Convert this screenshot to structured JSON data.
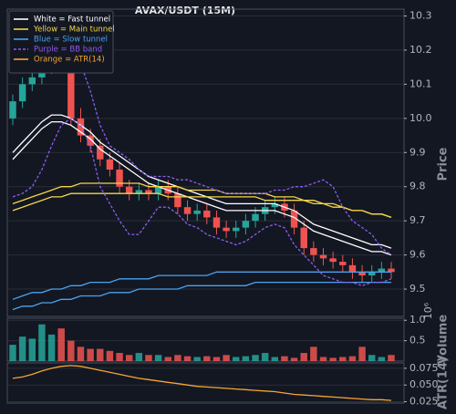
{
  "chart_data": [
    {
      "type": "candlestick",
      "title": "AVAX/USDT (15M)",
      "y_label": "Price",
      "ylim": [
        9.42,
        10.32
      ],
      "yticks": [
        9.5,
        9.6,
        9.7,
        9.8,
        9.9,
        {
          "value": 10,
          "label": "10.0"
        },
        10.1,
        10.2,
        10.3
      ],
      "grid": true,
      "legend": "upper left",
      "up_color": "#26a69a",
      "down_color": "#ef5350",
      "open": [
        10.0,
        10.05,
        10.1,
        10.12,
        10.15,
        10.18,
        10.16,
        10.0,
        9.95,
        9.92,
        9.88,
        9.85,
        9.8,
        9.78,
        9.79,
        9.78,
        9.8,
        9.78,
        9.74,
        9.72,
        9.73,
        9.71,
        9.68,
        9.67,
        9.68,
        9.7,
        9.72,
        9.74,
        9.75,
        9.73,
        9.68,
        9.62,
        9.6,
        9.59,
        9.58,
        9.57,
        9.55,
        9.54,
        9.55,
        9.56
      ],
      "high": [
        10.07,
        10.12,
        10.14,
        10.17,
        10.21,
        10.2,
        10.18,
        10.03,
        9.97,
        9.94,
        9.9,
        9.87,
        9.82,
        9.81,
        9.81,
        9.82,
        9.82,
        9.8,
        9.76,
        9.75,
        9.75,
        9.73,
        9.7,
        9.7,
        9.72,
        9.74,
        9.76,
        9.77,
        9.77,
        9.75,
        9.7,
        9.64,
        9.62,
        9.61,
        9.6,
        9.59,
        9.57,
        9.57,
        9.58,
        9.58
      ],
      "low": [
        9.98,
        10.03,
        10.08,
        10.1,
        10.13,
        10.14,
        9.98,
        9.93,
        9.9,
        9.86,
        9.83,
        9.78,
        9.76,
        9.76,
        9.76,
        9.76,
        9.76,
        9.72,
        9.7,
        9.7,
        9.69,
        9.66,
        9.65,
        9.65,
        9.66,
        9.68,
        9.7,
        9.72,
        9.71,
        9.66,
        9.6,
        9.58,
        9.57,
        9.56,
        9.55,
        9.53,
        9.52,
        9.52,
        9.53,
        9.53
      ],
      "close": [
        10.05,
        10.1,
        10.12,
        10.15,
        10.18,
        10.16,
        10.0,
        9.95,
        9.92,
        9.88,
        9.85,
        9.8,
        9.78,
        9.79,
        9.78,
        9.8,
        9.78,
        9.74,
        9.72,
        9.73,
        9.71,
        9.68,
        9.67,
        9.68,
        9.7,
        9.72,
        9.74,
        9.75,
        9.73,
        9.68,
        9.62,
        9.6,
        9.59,
        9.58,
        9.57,
        9.55,
        9.54,
        9.55,
        9.56,
        9.55
      ],
      "series": [
        {
          "name": "White = Fast tunnel",
          "color": "#ffffff",
          "upper": [
            9.9,
            9.93,
            9.96,
            9.99,
            10.01,
            10.01,
            10.0,
            9.98,
            9.96,
            9.93,
            9.91,
            9.89,
            9.87,
            9.85,
            9.83,
            9.82,
            9.81,
            9.8,
            9.79,
            9.78,
            9.77,
            9.76,
            9.75,
            9.75,
            9.75,
            9.75,
            9.75,
            9.75,
            9.74,
            9.73,
            9.71,
            9.69,
            9.68,
            9.67,
            9.66,
            9.65,
            9.64,
            9.63,
            9.63,
            9.62
          ],
          "lower": [
            9.88,
            9.91,
            9.94,
            9.97,
            9.99,
            9.99,
            9.98,
            9.96,
            9.94,
            9.91,
            9.89,
            9.87,
            9.85,
            9.83,
            9.81,
            9.8,
            9.79,
            9.78,
            9.77,
            9.76,
            9.75,
            9.74,
            9.73,
            9.73,
            9.73,
            9.73,
            9.73,
            9.73,
            9.72,
            9.71,
            9.69,
            9.67,
            9.66,
            9.65,
            9.64,
            9.63,
            9.62,
            9.61,
            9.61,
            9.6
          ]
        },
        {
          "name": "Yellow = Main tunnel",
          "color": "#f5d547",
          "upper": [
            9.75,
            9.76,
            9.77,
            9.78,
            9.79,
            9.8,
            9.8,
            9.81,
            9.81,
            9.81,
            9.81,
            9.81,
            9.81,
            9.81,
            9.8,
            9.8,
            9.8,
            9.8,
            9.79,
            9.79,
            9.79,
            9.79,
            9.78,
            9.78,
            9.78,
            9.78,
            9.78,
            9.77,
            9.77,
            9.77,
            9.76,
            9.76,
            9.75,
            9.75,
            9.74,
            9.73,
            9.73,
            9.72,
            9.72,
            9.71
          ],
          "lower": [
            9.73,
            9.74,
            9.75,
            9.76,
            9.77,
            9.77,
            9.78,
            9.78,
            9.78,
            9.78,
            9.78,
            9.78,
            9.78,
            9.78,
            9.78,
            9.78,
            9.77,
            9.77,
            9.77,
            9.77,
            9.77,
            9.77,
            9.77,
            9.77,
            9.77,
            9.77,
            9.76,
            9.76,
            9.76,
            9.76,
            9.76,
            9.75,
            9.75,
            9.74,
            9.74,
            9.73,
            9.73,
            9.72,
            9.72,
            9.71
          ]
        },
        {
          "name": "Blue = Slow tunnel",
          "color": "#4aa3f0",
          "upper": [
            9.47,
            9.48,
            9.49,
            9.49,
            9.5,
            9.5,
            9.51,
            9.51,
            9.52,
            9.52,
            9.52,
            9.53,
            9.53,
            9.53,
            9.53,
            9.54,
            9.54,
            9.54,
            9.54,
            9.54,
            9.54,
            9.55,
            9.55,
            9.55,
            9.55,
            9.55,
            9.55,
            9.55,
            9.55,
            9.55,
            9.55,
            9.55,
            9.55,
            9.55,
            9.55,
            9.55,
            9.55,
            9.55,
            9.55,
            9.55
          ],
          "lower": [
            9.44,
            9.45,
            9.45,
            9.46,
            9.46,
            9.47,
            9.47,
            9.48,
            9.48,
            9.48,
            9.49,
            9.49,
            9.49,
            9.5,
            9.5,
            9.5,
            9.5,
            9.5,
            9.51,
            9.51,
            9.51,
            9.51,
            9.51,
            9.51,
            9.51,
            9.52,
            9.52,
            9.52,
            9.52,
            9.52,
            9.52,
            9.52,
            9.52,
            9.52,
            9.52,
            9.52,
            9.52,
            9.52,
            9.52,
            9.52
          ]
        },
        {
          "name": "Purple = BB band",
          "color": "#8c5cf0",
          "dashed": true,
          "upper": [
            10.15,
            10.22,
            10.26,
            10.28,
            10.27,
            10.25,
            10.22,
            10.16,
            10.08,
            9.98,
            9.92,
            9.9,
            9.88,
            9.85,
            9.83,
            9.83,
            9.83,
            9.82,
            9.82,
            9.81,
            9.8,
            9.79,
            9.78,
            9.78,
            9.78,
            9.78,
            9.78,
            9.79,
            9.79,
            9.8,
            9.8,
            9.81,
            9.82,
            9.8,
            9.74,
            9.7,
            9.68,
            9.66,
            9.62,
            9.6
          ],
          "lower": [
            9.77,
            9.78,
            9.8,
            9.85,
            9.92,
            9.98,
            10.0,
            9.98,
            9.92,
            9.8,
            9.75,
            9.7,
            9.66,
            9.66,
            9.7,
            9.74,
            9.74,
            9.72,
            9.69,
            9.68,
            9.66,
            9.65,
            9.64,
            9.63,
            9.64,
            9.66,
            9.68,
            9.69,
            9.68,
            9.63,
            9.6,
            9.57,
            9.54,
            9.53,
            9.52,
            9.52,
            9.51,
            9.52,
            9.52,
            9.53
          ]
        }
      ]
    },
    {
      "type": "bar",
      "y_label": "Volume",
      "offset_label": "10⁶",
      "ylim": [
        0,
        1.05
      ],
      "yticks": [
        0.5,
        {
          "value": 1,
          "label": "1.0"
        }
      ],
      "grid": true,
      "values": [
        0.4,
        0.6,
        0.55,
        0.9,
        0.65,
        0.8,
        0.5,
        0.35,
        0.3,
        0.3,
        0.25,
        0.2,
        0.15,
        0.2,
        0.15,
        0.15,
        0.1,
        0.15,
        0.12,
        0.1,
        0.12,
        0.1,
        0.15,
        0.1,
        0.12,
        0.15,
        0.2,
        0.1,
        0.12,
        0.08,
        0.2,
        0.35,
        0.1,
        0.08,
        0.1,
        0.12,
        0.35,
        0.15,
        0.1,
        0.15
      ]
    },
    {
      "type": "line",
      "y_label": "ATR(14)",
      "ylim": [
        0.023,
        0.083
      ],
      "yticks": [
        0.025,
        {
          "value": 0.05,
          "label": "0.050"
        },
        {
          "value": 0.075,
          "label": "0.075"
        }
      ],
      "grid": true,
      "series": [
        {
          "name": "Orange = ATR(14)",
          "color": "#f7a531",
          "values": [
            0.06,
            0.062,
            0.066,
            0.071,
            0.075,
            0.078,
            0.079,
            0.078,
            0.075,
            0.072,
            0.069,
            0.066,
            0.063,
            0.06,
            0.058,
            0.056,
            0.054,
            0.052,
            0.05,
            0.048,
            0.047,
            0.046,
            0.045,
            0.044,
            0.043,
            0.042,
            0.041,
            0.04,
            0.038,
            0.036,
            0.035,
            0.034,
            0.033,
            0.032,
            0.031,
            0.03,
            0.029,
            0.028,
            0.028,
            0.027
          ]
        }
      ]
    }
  ]
}
